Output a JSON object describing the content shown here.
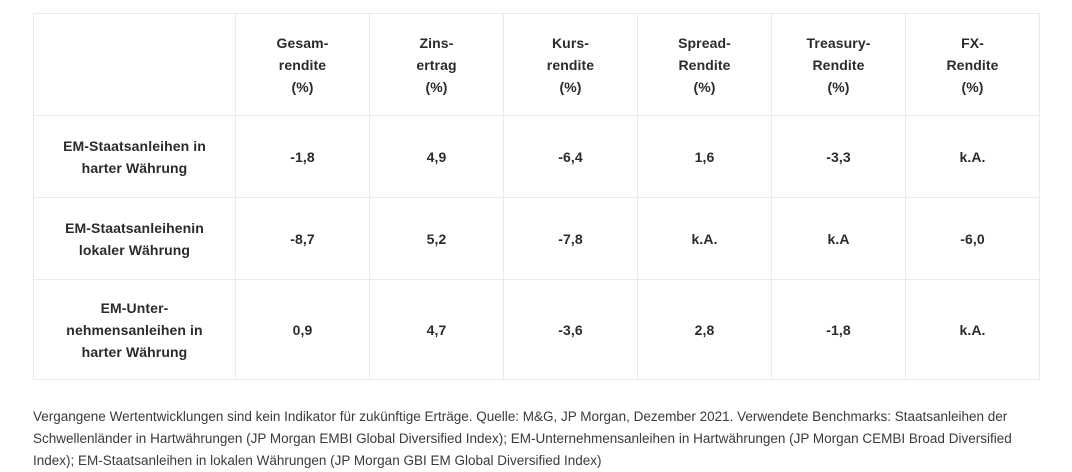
{
  "colors": {
    "background": "#ffffff",
    "table_border": "#e9eaeb",
    "table_text": "#2b2b2b",
    "footnote_text": "#3a3a3a"
  },
  "table": {
    "columns": [
      {
        "label": "Gesam-\nrendite\n(%)"
      },
      {
        "label": "Zins-\nertrag\n(%)"
      },
      {
        "label": "Kurs-\nrendite\n(%)"
      },
      {
        "label": "Spread-\nRendite\n(%)"
      },
      {
        "label": "Treasury-\nRendite\n(%)"
      },
      {
        "label": "FX-\nRendite\n(%)"
      }
    ],
    "rows": [
      {
        "label": "EM-Staatsanleihen in\nharter Währung",
        "values": [
          "-1,8",
          "4,9",
          "-6,4",
          "1,6",
          "-3,3",
          "k.A."
        ]
      },
      {
        "label": "EM-Staatsanleihenin\nlokaler Währung",
        "values": [
          "-8,7",
          "5,2",
          "-7,8",
          "k.A.",
          "k.A",
          "-6,0"
        ]
      },
      {
        "label": "EM-Unter-\nnehmensanleihen in\nharter Währung",
        "values": [
          "0,9",
          "4,7",
          "-3,6",
          "2,8",
          "-1,8",
          "k.A."
        ]
      }
    ]
  },
  "footnote": "Vergangene Wertentwicklungen sind kein Indikator für zukünftige Erträge. Quelle: M&G, JP Morgan, Dezember 2021. Verwendete Benchmarks: Staatsanleihen der Schwellenländer in Hartwährungen (JP Morgan EMBI Global Diversified Index); EM-Unternehmensanleihen in Hartwährungen (JP Morgan CEMBI Broad Diversified Index); EM-Staatsanleihen in lokalen Währungen (JP Morgan GBI EM Global Diversified Index)",
  "chart_data": {
    "type": "table",
    "title": "",
    "columns": [
      "Gesamrendite (%)",
      "Zinsertrag (%)",
      "Kursrendite (%)",
      "Spread-Rendite (%)",
      "Treasury-Rendite (%)",
      "FX-Rendite (%)"
    ],
    "categories": [
      "EM-Staatsanleihen in harter Währung",
      "EM-Staatsanleihen in lokaler Währung",
      "EM-Unternehmensanleihen in harter Währung"
    ],
    "series": [
      {
        "name": "Gesamrendite (%)",
        "values": [
          -1.8,
          -8.7,
          0.9
        ]
      },
      {
        "name": "Zinsertrag (%)",
        "values": [
          4.9,
          5.2,
          4.7
        ]
      },
      {
        "name": "Kursrendite (%)",
        "values": [
          -6.4,
          -7.8,
          -3.6
        ]
      },
      {
        "name": "Spread-Rendite (%)",
        "values": [
          1.6,
          null,
          2.8
        ]
      },
      {
        "name": "Treasury-Rendite (%)",
        "values": [
          -3.3,
          null,
          -1.8
        ]
      },
      {
        "name": "FX-Rendite (%)",
        "values": [
          null,
          -6.0,
          null
        ]
      }
    ],
    "na_label": "k.A."
  }
}
